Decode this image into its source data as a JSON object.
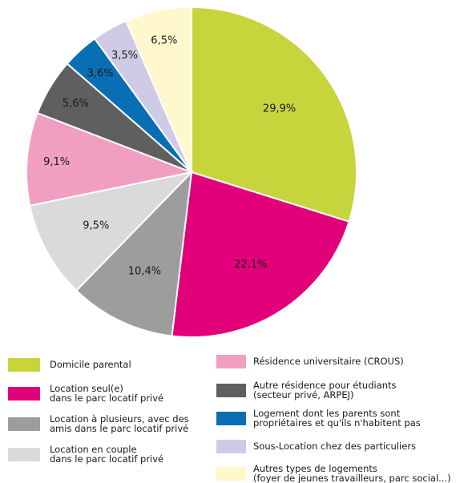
{
  "chart_data": {
    "type": "pie",
    "categories": [
      [
        "Domicile parental"
      ],
      [
        "Location seul(e)",
        "dans le parc locatif privé"
      ],
      [
        "Location à plusieurs, avec des",
        "amis dans le parc locatif privé"
      ],
      [
        "Location en couple",
        "dans le parc locatif privé"
      ],
      [
        "Résidence universitaire (CROUS)"
      ],
      [
        "Autre résidence pour étudiants",
        "(secteur privé, ARPEJ)"
      ],
      [
        "Logement dont les parents sont",
        "propriétaires et qu'ils n'habitent pas"
      ],
      [
        "Sous-Location chez des particuliers"
      ],
      [
        "Autres types de logements",
        "(foyer de jeunes travailleurs, parc social...)"
      ]
    ],
    "values": [
      29.9,
      22.1,
      10.4,
      9.5,
      9.1,
      5.6,
      3.6,
      3.5,
      6.5
    ],
    "value_labels": [
      "29,9%",
      "22,1%",
      "10,4%",
      "9,5%",
      "9,1%",
      "5,6%",
      "3,6%",
      "3,5%",
      "6,5%"
    ],
    "colors": [
      "#c8d43c",
      "#e2007a",
      "#9d9d9c",
      "#dadada",
      "#f09fc0",
      "#5f5f5f",
      "#0a6eb4",
      "#cfcbe6",
      "#fff8cc"
    ]
  }
}
